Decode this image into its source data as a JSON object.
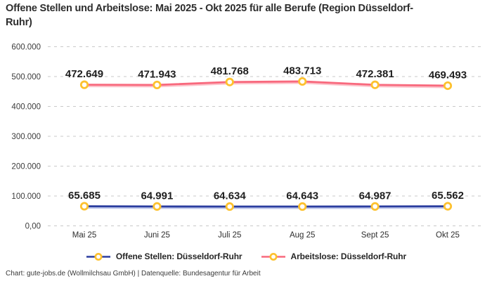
{
  "header": {
    "title": "Offene Stellen und Arbeitslose: Mai 2025 - Okt 2025 für alle Berufe (Region Düsseldorf-Ruhr)"
  },
  "footer": {
    "credit": "Chart: gute-jobs.de (Wollmilchsau GmbH) | Datenquelle: Bundesagentur für Arbeit"
  },
  "legend": {
    "items": [
      {
        "label": "Offene Stellen: Düsseldorf-Ruhr",
        "color": "#2b3d9f"
      },
      {
        "label": "Arbeitslose: Düsseldorf-Ruhr",
        "color": "#f8697d"
      }
    ]
  },
  "colors": {
    "marker_ring": "#fdc12e",
    "marker_fill": "#ffffff",
    "gridline": "#c9c9c9",
    "title_text": "#2d2d2d",
    "data_label_text": "#1f1f1f"
  },
  "chart_data": {
    "type": "line",
    "title": "Offene Stellen und Arbeitslose: Mai 2025 - Okt 2025 für alle Berufe (Region Düsseldorf-Ruhr)",
    "categories": [
      "Mai 25",
      "Juni 25",
      "Juli 25",
      "Aug 25",
      "Sept 25",
      "Okt 25"
    ],
    "series": [
      {
        "name": "Offene Stellen: Düsseldorf-Ruhr",
        "color": "#2b3d9f",
        "shadow_color": "#bcc5ea",
        "values": [
          65685,
          64991,
          64634,
          64643,
          64987,
          65562
        ],
        "labels": [
          "65.685",
          "64.991",
          "64.634",
          "64.643",
          "64.987",
          "65.562"
        ]
      },
      {
        "name": "Arbeitslose: Düsseldorf-Ruhr",
        "color": "#f8697d",
        "shadow_color": "#fcc3cb",
        "values": [
          472649,
          471943,
          481768,
          483713,
          472381,
          469493
        ],
        "labels": [
          "472.649",
          "471.943",
          "481.768",
          "483.713",
          "472.381",
          "469.493"
        ]
      }
    ],
    "xlabel": "",
    "ylabel": "",
    "ylim": [
      0,
      600000
    ],
    "ytick_step": 100000,
    "ytick_labels": [
      "0,00",
      "100.000",
      "200.000",
      "300.000",
      "400.000",
      "500.000",
      "600.000"
    ],
    "grid": "horizontal-dashed",
    "legend_position": "bottom"
  }
}
